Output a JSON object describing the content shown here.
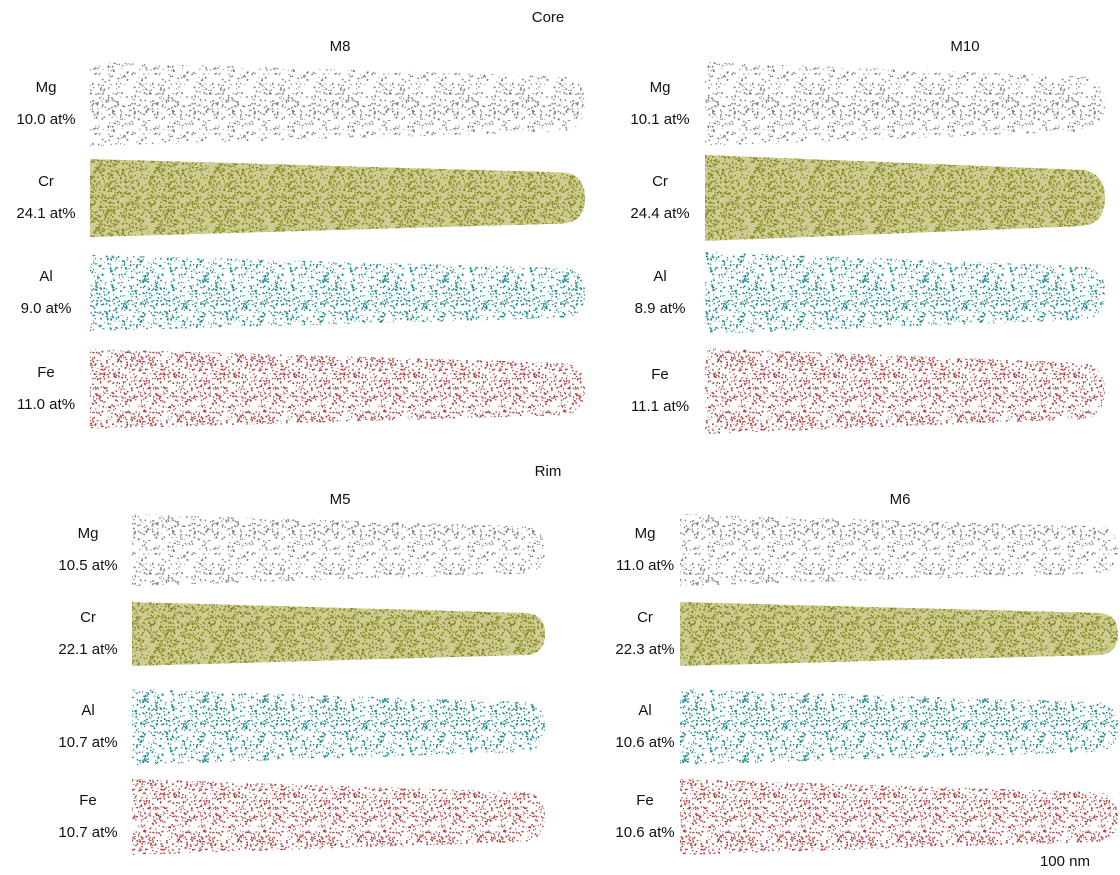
{
  "sections": [
    {
      "title": "Core",
      "panels": [
        {
          "name": "M8",
          "rows": [
            {
              "element": "Mg",
              "composition": "10.0 at%"
            },
            {
              "element": "Cr",
              "composition": "24.1 at%"
            },
            {
              "element": "Al",
              "composition": "9.0 at%"
            },
            {
              "element": "Fe",
              "composition": "11.0 at%"
            }
          ]
        },
        {
          "name": "M10",
          "rows": [
            {
              "element": "Mg",
              "composition": "10.1 at%"
            },
            {
              "element": "Cr",
              "composition": "24.4 at%"
            },
            {
              "element": "Al",
              "composition": "8.9 at%"
            },
            {
              "element": "Fe",
              "composition": "11.1 at%"
            }
          ]
        }
      ]
    },
    {
      "title": "Rim",
      "panels": [
        {
          "name": "M5",
          "rows": [
            {
              "element": "Mg",
              "composition": "10.5 at%"
            },
            {
              "element": "Cr",
              "composition": "22.1 at%"
            },
            {
              "element": "Al",
              "composition": "10.7 at%"
            },
            {
              "element": "Fe",
              "composition": "10.7 at%"
            }
          ]
        },
        {
          "name": "M6",
          "rows": [
            {
              "element": "Mg",
              "composition": "11.0 at%"
            },
            {
              "element": "Cr",
              "composition": "22.3 at%"
            },
            {
              "element": "Al",
              "composition": "10.6 at%"
            },
            {
              "element": "Fe",
              "composition": "10.6 at%"
            }
          ]
        }
      ]
    }
  ],
  "scale_bar": "100 nm"
}
